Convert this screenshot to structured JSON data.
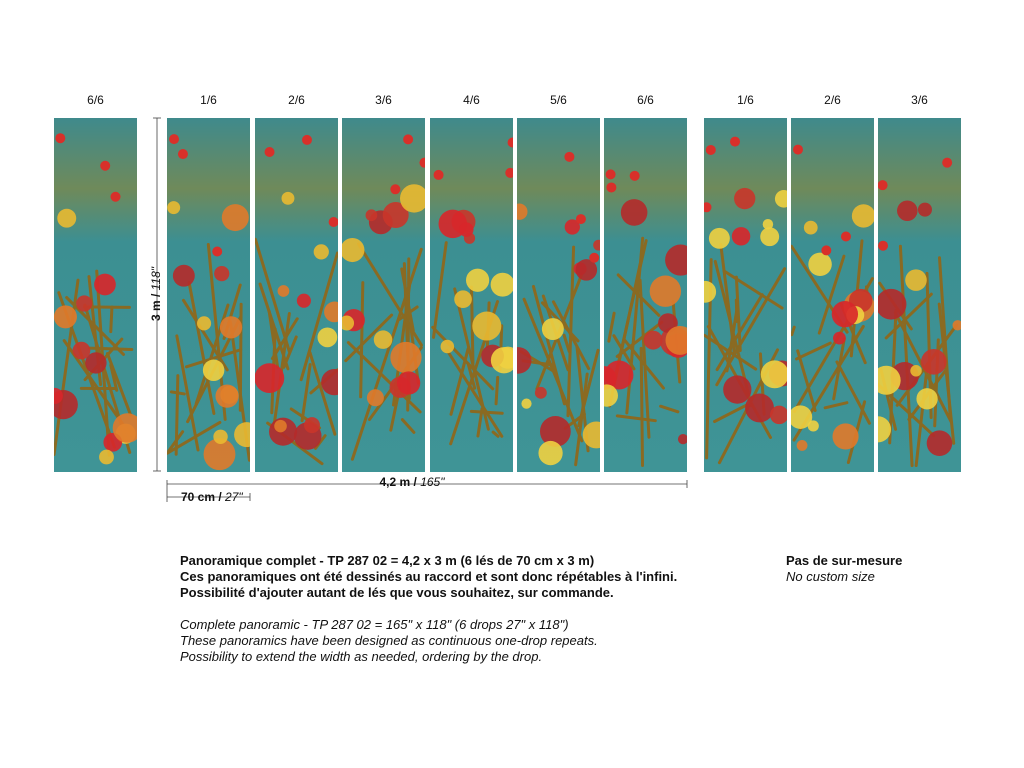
{
  "panels": {
    "labels": [
      "6/6",
      "1/6",
      "2/6",
      "3/6",
      "4/6",
      "5/6",
      "6/6",
      "1/6",
      "2/6",
      "3/6"
    ]
  },
  "dimensions": {
    "height": {
      "metric": "3 m /",
      "imperial": "118\""
    },
    "width": {
      "metric": "4,2 m /",
      "imperial": "165\""
    },
    "drop": {
      "metric": "70 cm /",
      "imperial": "27\""
    }
  },
  "description": {
    "french": [
      "Panoramique complet - TP 287 02 = 4,2 x 3 m (6 lés de 70 cm x 3 m)",
      "Ces panoramiques ont été dessinés au raccord et sont donc répétables à l'infini.",
      "Possibilité d'ajouter autant de lés que vous souhaitez, sur commande."
    ],
    "english": [
      "Complete panoramic - TP 287 02 = 165\" x 118\" (6 drops 27\" x 118\")",
      "These panoramics have been designed as continuous one-drop repeats.",
      "Possibility to extend the width as needed, ordering by the drop."
    ]
  },
  "custom": {
    "french": "Pas de sur-mesure",
    "english": "No custom size"
  }
}
